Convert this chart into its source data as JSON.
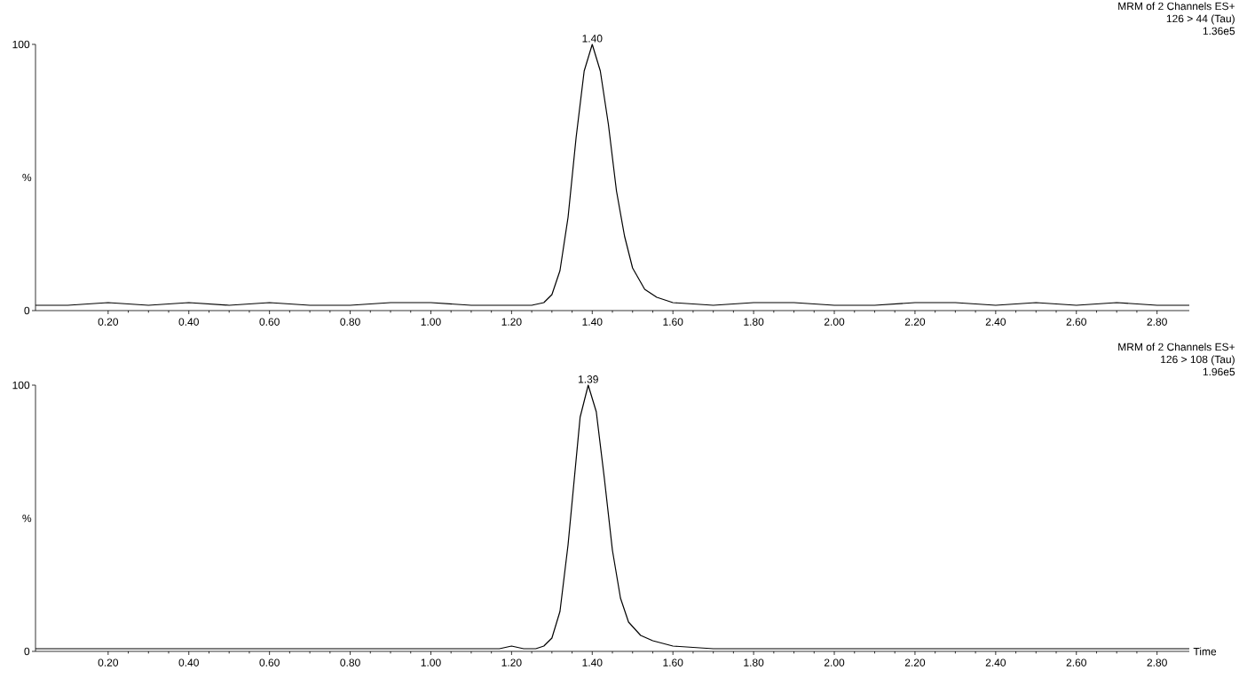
{
  "chart_data": [
    {
      "type": "line",
      "ylabel": "%",
      "annotations": [
        "MRM of 2 Channels ES+",
        "126 > 44 (Tau)",
        "1.36e5",
        {
          "text": "1.40",
          "x": 1.4,
          "y": 100
        }
      ],
      "x": [
        0.02,
        0.1,
        0.2,
        0.3,
        0.4,
        0.5,
        0.6,
        0.7,
        0.8,
        0.9,
        1.0,
        1.1,
        1.2,
        1.25,
        1.28,
        1.3,
        1.32,
        1.34,
        1.36,
        1.38,
        1.4,
        1.42,
        1.44,
        1.46,
        1.48,
        1.5,
        1.53,
        1.56,
        1.6,
        1.7,
        1.8,
        1.9,
        2.0,
        2.1,
        2.2,
        2.3,
        2.4,
        2.5,
        2.6,
        2.7,
        2.8,
        2.88
      ],
      "series": [
        {
          "color": "#000000",
          "values": [
            2,
            2,
            3,
            2,
            3,
            2,
            3,
            2,
            2,
            3,
            3,
            2,
            2,
            2,
            3,
            6,
            15,
            35,
            65,
            90,
            100,
            90,
            70,
            45,
            28,
            16,
            8,
            5,
            3,
            2,
            3,
            3,
            2,
            2,
            3,
            3,
            2,
            3,
            2,
            3,
            2,
            2
          ]
        }
      ],
      "ylim": [
        0,
        100
      ],
      "yticks": [
        0,
        100
      ],
      "xlim": [
        0.02,
        2.88
      ],
      "xticks": [
        {
          "value": 0.2,
          "label": "0.20"
        },
        {
          "value": 0.4,
          "label": "0.40"
        },
        {
          "value": 0.6,
          "label": "0.60"
        },
        {
          "value": 0.8,
          "label": "0.80"
        },
        {
          "value": 1.0,
          "label": "1.00"
        },
        {
          "value": 1.2,
          "label": "1.20"
        },
        {
          "value": 1.4,
          "label": "1.40"
        },
        {
          "value": 1.6,
          "label": "1.60"
        },
        {
          "value": 1.8,
          "label": "1.80"
        },
        {
          "value": 2.0,
          "label": "2.00"
        },
        {
          "value": 2.2,
          "label": "2.20"
        },
        {
          "value": 2.4,
          "label": "2.40"
        },
        {
          "value": 2.6,
          "label": "2.60"
        },
        {
          "value": 2.8,
          "label": "2.80"
        }
      ]
    },
    {
      "type": "line",
      "ylabel": "%",
      "xlabel": "Time",
      "annotations": [
        "MRM of 2 Channels ES+",
        "126 > 108 (Tau)",
        "1.96e5",
        {
          "text": "1.39",
          "x": 1.39,
          "y": 100
        }
      ],
      "x": [
        0.02,
        0.2,
        0.4,
        0.6,
        0.8,
        1.0,
        1.1,
        1.17,
        1.2,
        1.23,
        1.26,
        1.28,
        1.3,
        1.32,
        1.34,
        1.36,
        1.37,
        1.39,
        1.41,
        1.43,
        1.45,
        1.47,
        1.49,
        1.52,
        1.55,
        1.6,
        1.7,
        1.8,
        2.0,
        2.2,
        2.4,
        2.6,
        2.8,
        2.88
      ],
      "series": [
        {
          "color": "#000000",
          "values": [
            1,
            1,
            1,
            1,
            1,
            1,
            1,
            1,
            2,
            1,
            1,
            2,
            5,
            15,
            40,
            72,
            88,
            100,
            90,
            65,
            38,
            20,
            11,
            6,
            4,
            2,
            1,
            1,
            1,
            1,
            1,
            1,
            1,
            1
          ]
        }
      ],
      "ylim": [
        0,
        100
      ],
      "yticks": [
        0,
        100
      ],
      "xlim": [
        0.02,
        2.88
      ],
      "xticks": [
        {
          "value": 0.2,
          "label": "0.20"
        },
        {
          "value": 0.4,
          "label": "0.40"
        },
        {
          "value": 0.6,
          "label": "0.60"
        },
        {
          "value": 0.8,
          "label": "0.80"
        },
        {
          "value": 1.0,
          "label": "1.00"
        },
        {
          "value": 1.2,
          "label": "1.20"
        },
        {
          "value": 1.4,
          "label": "1.40"
        },
        {
          "value": 1.6,
          "label": "1.60"
        },
        {
          "value": 1.8,
          "label": "1.80"
        },
        {
          "value": 2.0,
          "label": "2.00"
        },
        {
          "value": 2.2,
          "label": "2.20"
        },
        {
          "value": 2.4,
          "label": "2.40"
        },
        {
          "value": 2.6,
          "label": "2.60"
        },
        {
          "value": 2.8,
          "label": "2.80"
        }
      ]
    }
  ]
}
